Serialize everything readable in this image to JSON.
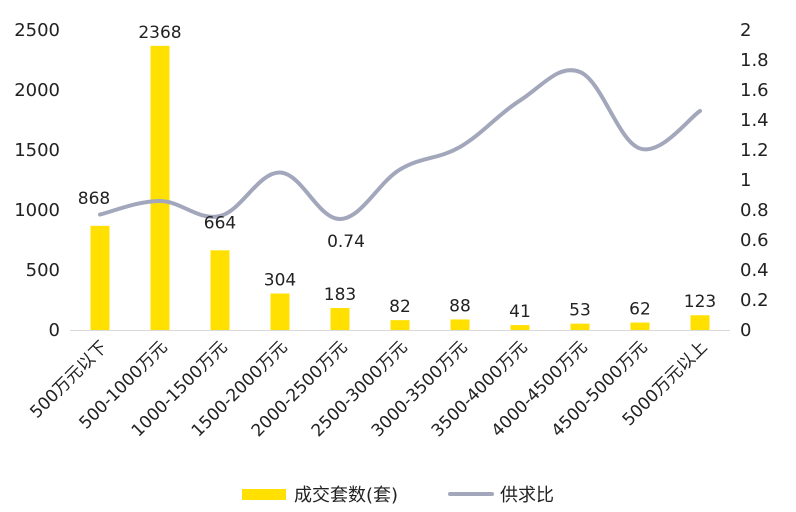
{
  "chart_data": {
    "type": "bar+line",
    "categories": [
      "500万元以下",
      "500-1000万元",
      "1000-1500万元",
      "1500-2000万元",
      "2000-2500万元",
      "2500-3000万元",
      "3000-3500万元",
      "3500-4000万元",
      "4000-4500万元",
      "4500-5000万元",
      "5000万元以上"
    ],
    "series": [
      {
        "name": "成交套数(套)",
        "type": "bar",
        "axis": "left",
        "color": "#FFE000",
        "values": [
          868,
          2368,
          664,
          304,
          183,
          82,
          88,
          41,
          53,
          62,
          123
        ],
        "data_labels": [
          "868",
          "2368",
          "664",
          "304",
          "183",
          "82",
          "88",
          "41",
          "53",
          "62",
          "123"
        ]
      },
      {
        "name": "供求比",
        "type": "line",
        "axis": "right",
        "color": "#A3A7BC",
        "values": [
          0.77,
          0.86,
          0.76,
          1.05,
          0.74,
          1.07,
          1.22,
          1.53,
          1.72,
          1.21,
          1.46
        ],
        "data_labels": [
          "",
          "",
          "",
          "",
          "0.74",
          "",
          "",
          "",
          "",
          "",
          ""
        ]
      }
    ],
    "y_left": {
      "min": 0,
      "max": 2500,
      "ticks": [
        "0",
        "500",
        "1000",
        "1500",
        "2000",
        "2500"
      ]
    },
    "y_right": {
      "min": 0,
      "max": 2,
      "ticks": [
        "0",
        "0.2",
        "0.4",
        "0.6",
        "0.8",
        "1",
        "1.2",
        "1.4",
        "1.6",
        "1.8",
        "2"
      ]
    },
    "grid": false,
    "legend_position": "bottom"
  }
}
